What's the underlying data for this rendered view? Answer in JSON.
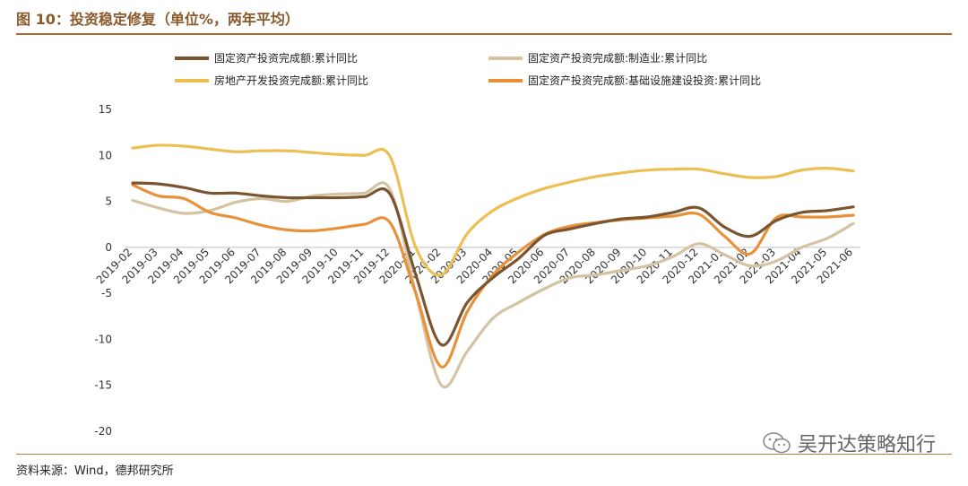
{
  "figure": {
    "title": "图 10：投资稳定修复（单位%，两年平均）",
    "source": "资料来源：Wind，德邦研究所",
    "watermark": "吴开达策略知行"
  },
  "chart_data": {
    "type": "line",
    "title": "",
    "xlabel": "",
    "ylabel": "",
    "ylim": [
      -20,
      15
    ],
    "yticks": [
      15,
      10,
      5,
      0,
      -5,
      -10,
      -15,
      -20
    ],
    "grid": false,
    "legend_position": "top",
    "categories": [
      "2019-02",
      "2019-03",
      "2019-04",
      "2019-05",
      "2019-06",
      "2019-07",
      "2019-08",
      "2019-09",
      "2019-10",
      "2019-11",
      "2019-12",
      "2020-01",
      "2020-02",
      "2020-03",
      "2020-04",
      "2020-05",
      "2020-06",
      "2020-07",
      "2020-08",
      "2020-09",
      "2020-10",
      "2020-11",
      "2020-12",
      "2021-01",
      "2021-02",
      "2021-03",
      "2021-04",
      "2021-05",
      "2021-06"
    ],
    "series": [
      {
        "name": "固定资产投资完成额:累计同比",
        "color": "#7a5530",
        "values": [
          7.0,
          6.9,
          6.5,
          5.9,
          5.9,
          5.6,
          5.4,
          5.4,
          5.4,
          5.5,
          5.8,
          -3.0,
          -10.6,
          -6.0,
          -3.3,
          -1.2,
          1.3,
          2.0,
          2.6,
          3.1,
          3.3,
          3.8,
          4.3,
          2.2,
          1.2,
          2.9,
          3.8,
          4.0,
          4.4
        ]
      },
      {
        "name": "固定资产投资完成额:制造业:累计同比",
        "color": "#d4c3a3",
        "values": [
          5.1,
          4.3,
          3.7,
          4.0,
          4.9,
          5.3,
          5.0,
          5.6,
          5.8,
          5.9,
          6.3,
          -5.0,
          -15.0,
          -11.3,
          -7.7,
          -6.0,
          -4.5,
          -3.3,
          -3.0,
          -2.5,
          -2.0,
          -1.0,
          0.4,
          -0.8,
          -2.0,
          -1.5,
          0.0,
          1.0,
          2.6
        ]
      },
      {
        "name": "房地产开发投资完成额:累计同比",
        "color": "#ecbf53",
        "values": [
          10.8,
          11.1,
          11.0,
          10.7,
          10.4,
          10.5,
          10.5,
          10.3,
          10.1,
          10.0,
          9.9,
          0.0,
          -3.0,
          1.5,
          4.0,
          5.4,
          6.4,
          7.1,
          7.7,
          8.1,
          8.4,
          8.5,
          8.5,
          8.0,
          7.6,
          7.7,
          8.4,
          8.6,
          8.3
        ]
      },
      {
        "name": "固定资产投资完成额:基础设施建设投资:累计同比",
        "color": "#e8913a",
        "values": [
          6.8,
          5.6,
          5.3,
          3.8,
          3.2,
          2.4,
          1.9,
          1.8,
          2.1,
          2.5,
          2.7,
          -5.0,
          -13.0,
          -7.0,
          -3.0,
          -0.5,
          1.4,
          2.3,
          2.7,
          3.0,
          3.2,
          3.4,
          3.6,
          1.2,
          -0.7,
          3.2,
          3.3,
          3.3,
          3.5
        ]
      }
    ]
  }
}
